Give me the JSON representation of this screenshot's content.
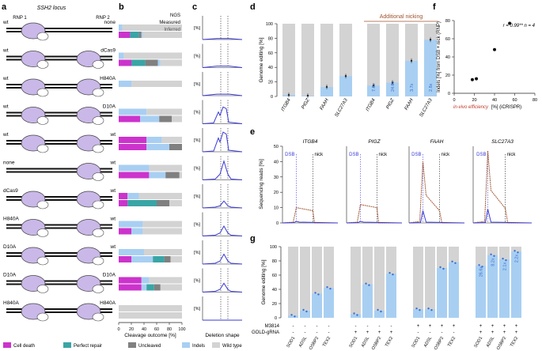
{
  "panels": {
    "a": "a",
    "b": "b",
    "c": "c",
    "d": "d",
    "e": "e",
    "f": "f",
    "g": "g"
  },
  "panel_a": {
    "locus_title": "SSH2 locus",
    "col1": "RNP 1",
    "col2": "RNP 2",
    "rows": [
      {
        "rnp1": "wt",
        "rnp2": "none"
      },
      {
        "rnp1": "wt",
        "rnp2": "dCas9"
      },
      {
        "rnp1": "wt",
        "rnp2": "H840A"
      },
      {
        "rnp1": "wt",
        "rnp2": "D10A"
      },
      {
        "rnp1": "wt",
        "rnp2": "wt"
      },
      {
        "rnp1": "none",
        "rnp2": "wt"
      },
      {
        "rnp1": "dCas9",
        "rnp2": "wt"
      },
      {
        "rnp1": "H840A",
        "rnp2": "wt"
      },
      {
        "rnp1": "D10A",
        "rnp2": "wt"
      },
      {
        "rnp1": "D10A",
        "rnp2": "D10A"
      },
      {
        "rnp1": "H840A",
        "rnp2": "H840A"
      }
    ]
  },
  "panel_b": {
    "labels": {
      "ngs": "NGS",
      "measured": "Measured",
      "inferred": "Inferred"
    },
    "xlabel": "Cleavage outcome [%]",
    "ticks": [
      "0",
      "20",
      "40",
      "60",
      "80",
      "100"
    ],
    "colors": {
      "cell_death": "#cc33cc",
      "perfect_repair": "#3aa5a5",
      "uncleaved": "#808080",
      "indels": "#a8cff2",
      "wild_type": "#d3d3d3"
    }
  },
  "panel_c": {
    "ylabel": "[%]",
    "xlabel": "Deletion shape",
    "yticks": [
      "0",
      "20",
      "40"
    ]
  },
  "panel_d": {
    "ylabel": "Genome editing [%]",
    "yticks": [
      "0",
      "20",
      "40",
      "60",
      "80",
      "100"
    ],
    "annotation": "Additional nicking",
    "chart_data": {
      "type": "bar",
      "categories": [
        "ITGB4",
        "PIGZ",
        "FAAH",
        "SLC27A3",
        "ITGB4",
        "PIGZ",
        "FAAH",
        "SLC27A3"
      ],
      "values": [
        2,
        1,
        13,
        28,
        15,
        19,
        49,
        78
      ],
      "fold_labels": [
        "",
        "",
        "",
        "",
        "7.6x",
        "24.0x",
        "3.7x",
        "2.8x"
      ],
      "ylim": [
        0,
        100
      ]
    }
  },
  "panel_e": {
    "ylabel": "Sequencing reads [%]",
    "dsb": "DSB",
    "nick": "nick",
    "yticks": [
      "0",
      "10",
      "20",
      "30",
      "40",
      "50"
    ],
    "genes": [
      "ITGB4",
      "PIGZ",
      "FAAH",
      "SLC27A3"
    ]
  },
  "panel_f": {
    "annotation": "r = 0.99** n = 4",
    "ylabel": "Indels [%] from DSB + nick (RNP)",
    "xlabel_red": "in-vivo efficiency",
    "xlabel_rest": "[%] (iCRISPR)",
    "xticks": [
      "0",
      "20",
      "40",
      "60",
      "80"
    ],
    "yticks": [
      "0",
      "20",
      "40",
      "60",
      "80"
    ],
    "chart_data": {
      "type": "scatter",
      "x": [
        18,
        22,
        40,
        55
      ],
      "y": [
        15,
        16,
        48,
        77
      ],
      "xlim": [
        0,
        80
      ],
      "ylim": [
        0,
        80
      ]
    }
  },
  "panel_g": {
    "ylabel": "Genome editing [%]",
    "yticks": [
      "0",
      "20",
      "40",
      "60",
      "80",
      "100"
    ],
    "m3814": "M3814",
    "gold": "GOLD-gRNA",
    "genes": [
      "SOD1",
      "ADSL",
      "OSBP2",
      "TEX2"
    ],
    "chart_data": {
      "type": "bar",
      "groups": [
        {
          "m3814": "-",
          "gold": "-",
          "values": [
            3,
            10,
            34,
            42
          ]
        },
        {
          "m3814": "-",
          "gold": "+",
          "values": [
            5,
            47,
            10,
            62
          ]
        },
        {
          "m3814": "+",
          "gold": "-",
          "values": [
            12,
            12,
            70,
            78
          ]
        },
        {
          "m3814": "+",
          "gold": "+",
          "values": [
            73,
            88,
            82,
            93
          ]
        }
      ],
      "fold_labels": [
        "26.6x",
        "8.2x",
        "2.1x",
        "2.2x"
      ],
      "ylim": [
        0,
        100
      ]
    }
  },
  "legend": {
    "cell_death": "Cell death",
    "perfect_repair": "Perfect repair",
    "uncleaved": "Uncleaved",
    "indels": "Indels",
    "wild_type": "Wild type"
  }
}
